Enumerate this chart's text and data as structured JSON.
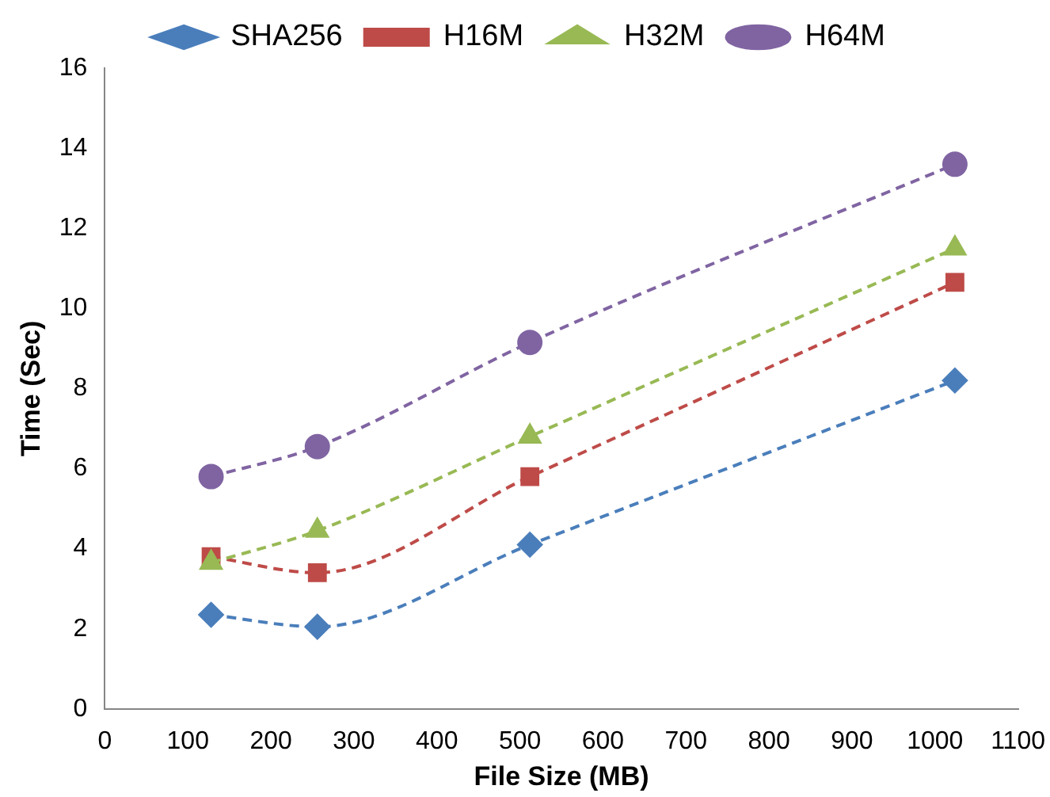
{
  "chart_data": {
    "type": "line",
    "xlabel": "File Size (MB)",
    "ylabel": "Time (Sec)",
    "x": [
      128,
      256,
      512,
      1024
    ],
    "series": [
      {
        "name": "SHA256",
        "color": "#4a7ebb",
        "marker": "diamond",
        "values": [
          2.35,
          2.05,
          4.1,
          8.2
        ]
      },
      {
        "name": "H16M",
        "color": "#be4b48",
        "marker": "square",
        "values": [
          3.8,
          3.4,
          5.8,
          10.65
        ]
      },
      {
        "name": "H32M",
        "color": "#98b954",
        "marker": "triangle",
        "values": [
          3.65,
          4.45,
          6.8,
          11.5
        ]
      },
      {
        "name": "H64M",
        "color": "#8064a2",
        "marker": "circle",
        "values": [
          5.8,
          6.55,
          9.15,
          13.6
        ]
      }
    ],
    "xlim": [
      0,
      1100
    ],
    "xticks": [
      0,
      100,
      200,
      300,
      400,
      500,
      600,
      700,
      800,
      900,
      1000,
      1100
    ],
    "ylim": [
      0,
      16
    ],
    "yticks": [
      0,
      2,
      4,
      6,
      8,
      10,
      12,
      14,
      16
    ],
    "grid": false,
    "legend": "top",
    "line_style": "dashed"
  }
}
